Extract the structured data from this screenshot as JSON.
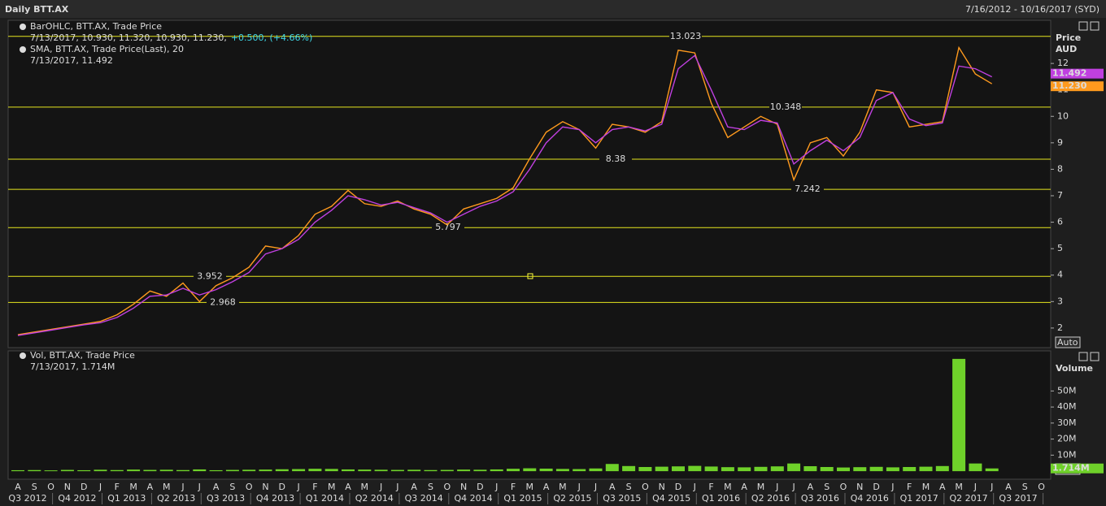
{
  "header": {
    "title": "Daily BTT.AX",
    "range": "7/16/2012 - 10/16/2017 (SYD)"
  },
  "x_axis": {
    "categories": [
      "A",
      "S",
      "O",
      "N",
      "D",
      "J",
      "F",
      "M",
      "A",
      "M",
      "J",
      "J",
      "A",
      "S",
      "O",
      "N",
      "D",
      "J",
      "F",
      "M",
      "A",
      "M",
      "J",
      "J",
      "A",
      "S",
      "O",
      "N",
      "D",
      "J",
      "F",
      "M",
      "A",
      "M",
      "J",
      "J",
      "A",
      "S",
      "O",
      "N",
      "D",
      "J",
      "F",
      "M",
      "A",
      "M",
      "J",
      "J",
      "A",
      "S",
      "O",
      "N",
      "D",
      "J",
      "F",
      "M",
      "A",
      "M",
      "J",
      "J",
      "A",
      "S",
      "O"
    ],
    "quarters": [
      "Q3 2012",
      "Q4 2012",
      "Q1 2013",
      "Q2 2013",
      "Q3 2013",
      "Q4 2013",
      "Q1 2014",
      "Q2 2014",
      "Q3 2014",
      "Q4 2014",
      "Q1 2015",
      "Q2 2015",
      "Q3 2015",
      "Q4 2015",
      "Q1 2016",
      "Q2 2016",
      "Q3 2016",
      "Q4 2016",
      "Q1 2017",
      "Q2 2017",
      "Q3 2017"
    ]
  },
  "chart_data": [
    {
      "type": "line",
      "ylabel": "Price",
      "yunit": "AUD",
      "auto_button": "Auto",
      "ylim": [
        1.26,
        13.63
      ],
      "yticks": [
        2,
        3,
        4,
        5,
        6,
        7,
        8,
        9,
        10,
        11,
        12
      ],
      "levels": [
        13.023,
        10.348,
        8.38,
        7.242,
        5.797,
        3.952,
        2.968
      ],
      "series": [
        {
          "name": "BarOHLC, BTT.AX, Trade Price",
          "color": "#ff9a1e",
          "readout": "7/13/2017, 10.930, 11.320, 10.930, 11.230,",
          "change": "+0.500, (+4.66%)",
          "values": [
            1.75,
            1.85,
            1.95,
            2.05,
            2.15,
            2.25,
            2.5,
            2.9,
            3.4,
            3.2,
            3.7,
            3.0,
            3.6,
            3.9,
            4.3,
            5.1,
            5.0,
            5.5,
            6.3,
            6.6,
            7.2,
            6.7,
            6.6,
            6.8,
            6.5,
            6.3,
            5.9,
            6.5,
            6.7,
            6.9,
            7.3,
            8.4,
            9.4,
            9.8,
            9.5,
            8.8,
            9.7,
            9.6,
            9.4,
            9.8,
            12.5,
            12.4,
            10.5,
            9.2,
            9.6,
            10.0,
            9.7,
            7.6,
            9.0,
            9.2,
            8.5,
            9.4,
            11.0,
            10.9,
            9.6,
            9.7,
            9.8,
            12.6,
            11.6,
            11.23,
            null,
            null,
            null
          ],
          "value_labels": [
            null,
            null,
            null,
            null,
            null,
            null,
            null,
            null,
            null,
            null,
            null,
            null,
            null,
            null,
            null,
            null,
            null,
            null,
            null,
            null,
            null,
            null,
            null,
            null,
            null,
            null,
            null,
            null,
            null,
            null,
            null,
            null,
            null,
            null,
            null,
            null,
            null,
            null,
            null,
            null,
            null,
            null,
            null,
            null,
            null,
            null,
            null,
            null,
            null,
            null,
            null,
            null,
            null,
            null,
            null,
            null,
            null,
            null,
            null,
            "11.230",
            null,
            null,
            null
          ]
        },
        {
          "name": "SMA, BTT.AX, Trade Price(Last), 20",
          "color": "#c040e0",
          "readout": "7/13/2017, 11.492",
          "values": [
            1.72,
            1.82,
            1.92,
            2.02,
            2.12,
            2.2,
            2.4,
            2.75,
            3.2,
            3.25,
            3.5,
            3.25,
            3.45,
            3.75,
            4.1,
            4.8,
            5.0,
            5.35,
            6.0,
            6.45,
            7.0,
            6.85,
            6.65,
            6.75,
            6.55,
            6.35,
            6.0,
            6.3,
            6.6,
            6.8,
            7.15,
            8.0,
            9.0,
            9.6,
            9.5,
            9.0,
            9.5,
            9.6,
            9.45,
            9.7,
            11.8,
            12.3,
            11.0,
            9.6,
            9.5,
            9.85,
            9.75,
            8.2,
            8.7,
            9.1,
            8.7,
            9.2,
            10.6,
            10.9,
            9.9,
            9.65,
            9.75,
            11.9,
            11.8,
            11.492,
            null,
            null,
            null
          ]
        }
      ]
    },
    {
      "type": "bar",
      "ylabel": "Volume",
      "auto_button": "Auto",
      "ylim": [
        -5000000,
        75000000
      ],
      "yticks": [
        {
          "value": 10000000,
          "label": "10M"
        },
        {
          "value": 20000000,
          "label": "20M"
        },
        {
          "value": 30000000,
          "label": "30M"
        },
        {
          "value": 40000000,
          "label": "40M"
        },
        {
          "value": 50000000,
          "label": "50M"
        }
      ],
      "series": [
        {
          "name": "Vol, BTT.AX, Trade Price",
          "color": "#6fd12a",
          "readout": "7/13/2017, 1.714M",
          "values": [
            600000,
            700000,
            500000,
            800000,
            600000,
            900000,
            700000,
            1000000,
            800000,
            900000,
            700000,
            1100000,
            600000,
            800000,
            900000,
            1000000,
            1200000,
            1300000,
            1500000,
            1400000,
            1100000,
            1000000,
            900000,
            800000,
            900000,
            700000,
            800000,
            1000000,
            900000,
            1100000,
            1500000,
            1800000,
            1600000,
            1400000,
            1300000,
            1700000,
            4500000,
            3200000,
            2600000,
            2800000,
            3000000,
            3300000,
            2900000,
            2500000,
            2400000,
            2700000,
            3000000,
            4800000,
            3100000,
            2600000,
            2300000,
            2500000,
            2700000,
            2400000,
            2600000,
            2800000,
            3200000,
            70000000,
            4800000,
            1714000,
            null,
            null,
            null
          ],
          "value_labels": [
            null,
            null,
            null,
            null,
            null,
            null,
            null,
            null,
            null,
            null,
            null,
            null,
            null,
            null,
            null,
            null,
            null,
            null,
            null,
            null,
            null,
            null,
            null,
            null,
            null,
            null,
            null,
            null,
            null,
            null,
            null,
            null,
            null,
            null,
            null,
            null,
            null,
            null,
            null,
            null,
            null,
            null,
            null,
            null,
            null,
            null,
            null,
            null,
            null,
            null,
            null,
            null,
            null,
            null,
            null,
            null,
            null,
            null,
            null,
            "1.714M",
            null,
            null,
            null
          ]
        }
      ]
    }
  ]
}
